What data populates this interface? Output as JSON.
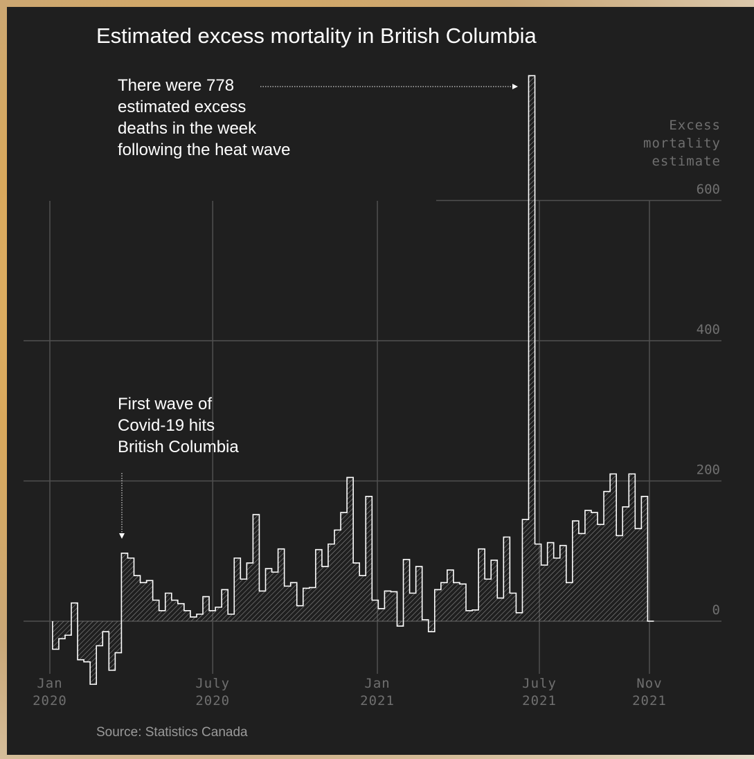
{
  "title": "Estimated excess mortality in British Columbia",
  "source": "Source: Statistics Canada",
  "annotations": {
    "heat_wave": [
      "There were 778",
      "estimated excess",
      "deaths in the week",
      "following the heat wave"
    ],
    "covid": [
      "First wave of",
      "Covid-19 hits",
      "British Columbia"
    ]
  },
  "colors": {
    "background": "#1f1f1f",
    "line": "#ffffff",
    "grid": "#505050",
    "tick_label": "#6f6f6f",
    "text": "#ffffff"
  },
  "chart_data": {
    "type": "area",
    "step": true,
    "ylabel": "Excess mortality estimate",
    "ylabel_lines": [
      "Excess",
      "mortality",
      "estimate"
    ],
    "yticks": [
      0,
      200,
      400,
      600
    ],
    "ylim": [
      -90,
      778
    ],
    "xticks": [
      {
        "line1": "Jan",
        "line2": "2020",
        "date": "2020-01-01"
      },
      {
        "line1": "July",
        "line2": "2020",
        "date": "2020-07-01"
      },
      {
        "line1": "Jan",
        "line2": "2021",
        "date": "2021-01-01"
      },
      {
        "line1": "July",
        "line2": "2021",
        "date": "2021-07-01"
      },
      {
        "line1": "Nov",
        "line2": "2021",
        "date": "2021-11-01"
      }
    ],
    "grid": true,
    "series": [
      {
        "x": [
          "2020-01-04",
          "2020-01-11",
          "2020-01-18",
          "2020-01-25",
          "2020-02-01",
          "2020-02-08",
          "2020-02-15",
          "2020-02-22",
          "2020-02-29",
          "2020-03-07",
          "2020-03-14",
          "2020-03-21",
          "2020-03-28",
          "2020-04-04",
          "2020-04-11",
          "2020-04-18",
          "2020-04-25",
          "2020-05-02",
          "2020-05-09",
          "2020-05-16",
          "2020-05-23",
          "2020-05-30",
          "2020-06-06",
          "2020-06-13",
          "2020-06-20",
          "2020-06-27",
          "2020-07-04",
          "2020-07-11",
          "2020-07-18",
          "2020-07-25",
          "2020-08-01",
          "2020-08-08",
          "2020-08-15",
          "2020-08-22",
          "2020-08-29",
          "2020-09-05",
          "2020-09-12",
          "2020-09-19",
          "2020-09-26",
          "2020-10-03",
          "2020-10-10",
          "2020-10-17",
          "2020-10-24",
          "2020-10-31",
          "2020-11-07",
          "2020-11-14",
          "2020-11-21",
          "2020-11-28",
          "2020-12-05",
          "2020-12-12",
          "2020-12-19",
          "2020-12-26",
          "2021-01-02",
          "2021-01-09",
          "2021-01-16",
          "2021-01-23",
          "2021-01-30",
          "2021-02-06",
          "2021-02-13",
          "2021-02-20",
          "2021-02-27",
          "2021-03-06",
          "2021-03-13",
          "2021-03-20",
          "2021-03-27",
          "2021-04-03",
          "2021-04-10",
          "2021-04-17",
          "2021-04-24",
          "2021-05-01",
          "2021-05-08",
          "2021-05-15",
          "2021-05-22",
          "2021-05-29",
          "2021-06-05",
          "2021-06-12",
          "2021-06-19",
          "2021-06-26",
          "2021-07-03",
          "2021-07-10",
          "2021-07-17",
          "2021-07-24",
          "2021-07-31",
          "2021-08-07",
          "2021-08-14",
          "2021-08-21",
          "2021-08-28",
          "2021-09-04",
          "2021-09-11",
          "2021-09-18",
          "2021-09-25",
          "2021-10-02",
          "2021-10-09",
          "2021-10-16",
          "2021-10-23",
          "2021-10-30"
        ],
        "values": [
          -40,
          -25,
          -20,
          26,
          -55,
          -58,
          -90,
          -35,
          -15,
          -70,
          -45,
          97,
          90,
          65,
          55,
          58,
          30,
          15,
          40,
          30,
          25,
          15,
          6,
          10,
          35,
          15,
          20,
          45,
          10,
          90,
          60,
          83,
          152,
          43,
          75,
          70,
          103,
          50,
          55,
          22,
          47,
          48,
          102,
          78,
          110,
          130,
          155,
          205,
          83,
          65,
          178,
          30,
          18,
          43,
          42,
          -7,
          88,
          40,
          78,
          2,
          -15,
          45,
          55,
          73,
          55,
          53,
          15,
          16,
          103,
          60,
          87,
          33,
          120,
          40,
          12,
          145,
          778,
          110,
          80,
          112,
          90,
          108,
          55,
          143,
          125,
          158,
          155,
          138,
          185,
          210,
          122,
          163,
          210,
          132,
          178,
          0
        ]
      }
    ]
  }
}
